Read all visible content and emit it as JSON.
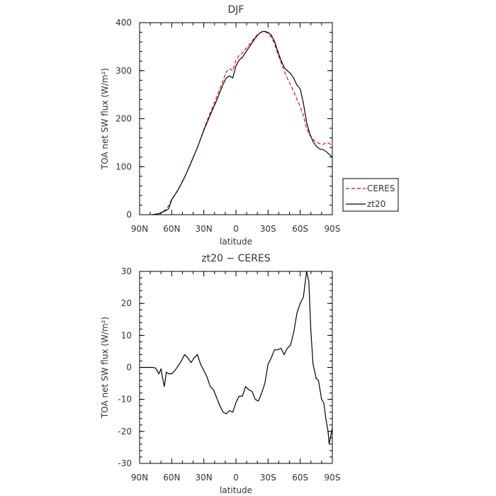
{
  "chart_data": [
    {
      "type": "line",
      "title": "DJF",
      "xlabel": "latitude",
      "ylabel": "TOA net SW flux (W/m²)",
      "x_tick_labels": [
        "90N",
        "60N",
        "30N",
        "0",
        "30S",
        "60S",
        "90S"
      ],
      "x_tick_values": [
        90,
        60,
        30,
        0,
        -30,
        -60,
        -90
      ],
      "xlim": [
        90,
        -90
      ],
      "ylim": [
        0,
        400
      ],
      "y_ticks": [
        0,
        100,
        200,
        300,
        400
      ],
      "grid": false,
      "legend_position": "right",
      "series": [
        {
          "name": "CERES",
          "color": "#ff0000",
          "dash": "dashed",
          "points": [
            [
              78,
              0
            ],
            [
              72,
              2
            ],
            [
              66,
              10
            ],
            [
              63,
              18
            ],
            [
              60,
              32
            ],
            [
              54,
              52
            ],
            [
              48,
              78
            ],
            [
              42,
              108
            ],
            [
              36,
              140
            ],
            [
              30,
              178
            ],
            [
              24,
              212
            ],
            [
              18,
              245
            ],
            [
              15,
              262
            ],
            [
              12,
              280
            ],
            [
              9,
              298
            ],
            [
              6,
              304
            ],
            [
              3,
              300
            ],
            [
              0,
              322
            ],
            [
              -3,
              332
            ],
            [
              -6,
              337
            ],
            [
              -9,
              345
            ],
            [
              -12,
              353
            ],
            [
              -15,
              362
            ],
            [
              -18,
              370
            ],
            [
              -21,
              377
            ],
            [
              -24,
              381
            ],
            [
              -27,
              381
            ],
            [
              -30,
              378
            ],
            [
              -33,
              370
            ],
            [
              -36,
              356
            ],
            [
              -39,
              336
            ],
            [
              -42,
              318
            ],
            [
              -45,
              300
            ],
            [
              -48,
              284
            ],
            [
              -51,
              270
            ],
            [
              -54,
              256
            ],
            [
              -57,
              240
            ],
            [
              -60,
              226
            ],
            [
              -63,
              206
            ],
            [
              -66,
              180
            ],
            [
              -69,
              165
            ],
            [
              -72,
              157
            ],
            [
              -75,
              151
            ],
            [
              -78,
              148
            ],
            [
              -81,
              146
            ],
            [
              -84,
              150
            ],
            [
              -87,
              149
            ],
            [
              -90,
              141
            ]
          ]
        },
        {
          "name": "zt20",
          "color": "#000000",
          "dash": "solid",
          "points": [
            [
              78,
              0
            ],
            [
              72,
              2
            ],
            [
              66,
              8
            ],
            [
              63,
              12
            ],
            [
              60,
              31
            ],
            [
              54,
              52
            ],
            [
              48,
              78
            ],
            [
              42,
              108
            ],
            [
              36,
              140
            ],
            [
              30,
              176
            ],
            [
              24,
              208
            ],
            [
              18,
              238
            ],
            [
              15,
              255
            ],
            [
              12,
              272
            ],
            [
              9,
              285
            ],
            [
              6,
              289
            ],
            [
              3,
              285
            ],
            [
              0,
              310
            ],
            [
              -3,
              322
            ],
            [
              -6,
              328
            ],
            [
              -9,
              338
            ],
            [
              -12,
              348
            ],
            [
              -15,
              358
            ],
            [
              -18,
              368
            ],
            [
              -21,
              376
            ],
            [
              -24,
              381
            ],
            [
              -27,
              382
            ],
            [
              -30,
              380
            ],
            [
              -33,
              374
            ],
            [
              -36,
              361
            ],
            [
              -39,
              341
            ],
            [
              -42,
              322
            ],
            [
              -45,
              307
            ],
            [
              -48,
              300
            ],
            [
              -51,
              294
            ],
            [
              -54,
              284
            ],
            [
              -57,
              270
            ],
            [
              -60,
              262
            ],
            [
              -63,
              232
            ],
            [
              -66,
              192
            ],
            [
              -69,
              168
            ],
            [
              -72,
              152
            ],
            [
              -75,
              143
            ],
            [
              -78,
              137
            ],
            [
              -81,
              136
            ],
            [
              -84,
              132
            ],
            [
              -87,
              126
            ],
            [
              -90,
              120
            ]
          ]
        }
      ]
    },
    {
      "type": "line",
      "title": "zt20 − CERES",
      "xlabel": "latitude",
      "ylabel": "TOA net SW flux (W/m²)",
      "x_tick_labels": [
        "90N",
        "60N",
        "30N",
        "0",
        "30S",
        "60S",
        "90S"
      ],
      "x_tick_values": [
        90,
        60,
        30,
        0,
        -30,
        -60,
        -90
      ],
      "xlim": [
        90,
        -90
      ],
      "ylim": [
        -30,
        30
      ],
      "y_ticks": [
        -30,
        -20,
        -10,
        0,
        10,
        20,
        30
      ],
      "grid": false,
      "series": [
        {
          "color": "#000000",
          "dash": "solid",
          "points": [
            [
              90,
              0
            ],
            [
              84,
              0
            ],
            [
              78,
              0
            ],
            [
              75,
              -0.2
            ],
            [
              72,
              -2
            ],
            [
              70,
              -0.5
            ],
            [
              67,
              -6
            ],
            [
              65,
              -1.5
            ],
            [
              63,
              -2
            ],
            [
              60,
              -2
            ],
            [
              57,
              -1
            ],
            [
              54,
              0.5
            ],
            [
              51,
              2
            ],
            [
              48,
              4
            ],
            [
              45,
              3
            ],
            [
              42,
              1.5
            ],
            [
              39,
              3
            ],
            [
              36,
              4
            ],
            [
              33,
              1
            ],
            [
              30,
              -1
            ],
            [
              27,
              -3
            ],
            [
              24,
              -6
            ],
            [
              21,
              -7
            ],
            [
              18,
              -9.5
            ],
            [
              15,
              -12
            ],
            [
              12,
              -14
            ],
            [
              9,
              -14.5
            ],
            [
              6,
              -13.5
            ],
            [
              3,
              -14
            ],
            [
              0,
              -11
            ],
            [
              -3,
              -9
            ],
            [
              -6,
              -9
            ],
            [
              -9,
              -6
            ],
            [
              -12,
              -7
            ],
            [
              -15,
              -7.5
            ],
            [
              -18,
              -10
            ],
            [
              -21,
              -10.5
            ],
            [
              -24,
              -8
            ],
            [
              -27,
              -5
            ],
            [
              -30,
              1
            ],
            [
              -33,
              3
            ],
            [
              -36,
              5.5
            ],
            [
              -39,
              5.5
            ],
            [
              -42,
              6
            ],
            [
              -45,
              4
            ],
            [
              -48,
              6
            ],
            [
              -51,
              7
            ],
            [
              -54,
              11
            ],
            [
              -57,
              17
            ],
            [
              -60,
              20
            ],
            [
              -63,
              22
            ],
            [
              -66,
              30
            ],
            [
              -68,
              27
            ],
            [
              -70,
              11
            ],
            [
              -72,
              1
            ],
            [
              -75,
              -3.5
            ],
            [
              -77,
              -4
            ],
            [
              -80,
              -10
            ],
            [
              -82,
              -11
            ],
            [
              -84,
              -16
            ],
            [
              -86,
              -20
            ],
            [
              -87,
              -24
            ],
            [
              -90,
              -19
            ]
          ]
        }
      ]
    }
  ]
}
